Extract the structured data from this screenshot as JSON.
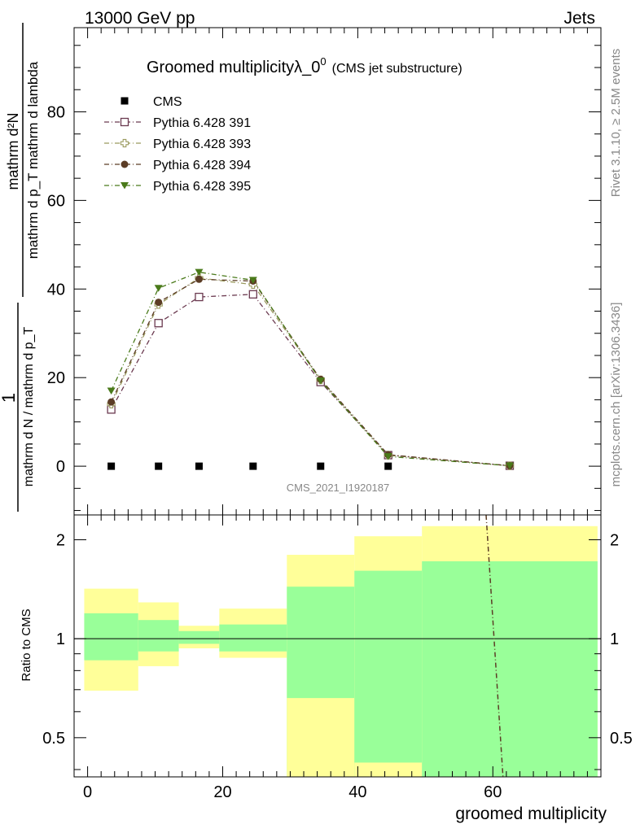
{
  "header": {
    "left": "13000 GeV pp",
    "right": "Jets"
  },
  "side_labels": {
    "rivet": "Rivet 3.1.10, ≥ 2.5M events",
    "mcplots": "mcplots.cern.ch [arXiv:1306.3436]"
  },
  "chart_data": [
    {
      "type": "line",
      "title": "Groomed multiplicityλ_0",
      "title_sup": "0",
      "subtitle": "(CMS jet substructure)",
      "watermark": "CMS_2021_I1920187",
      "ylabel_fraction": {
        "numerator": "1",
        "denominator": "mathrm d N / mathrm d p_T",
        "rhs_numerator": "mathrm d²N",
        "rhs_denominator": "mathrm d p_T mathrm d lambda"
      },
      "x_domain": [
        -2,
        76
      ],
      "ylim": [
        -11,
        99
      ],
      "yticks": [
        0,
        20,
        40,
        60,
        80
      ],
      "grid": false,
      "legend_position": "top-left",
      "series": [
        {
          "name": "CMS",
          "marker": "square-filled",
          "color": "#000000",
          "x": [
            3.5,
            10.5,
            16.5,
            24.5,
            34.5,
            44.5
          ],
          "y": [
            0,
            0,
            0,
            0,
            0,
            0
          ]
        },
        {
          "name": "Pythia 6.428 391",
          "marker": "square-open",
          "color": "#6b3a50",
          "x": [
            3.5,
            10.5,
            16.5,
            24.5,
            34.5,
            44.5,
            62.5
          ],
          "y": [
            12.8,
            32.3,
            38.2,
            38.8,
            19.0,
            2.5,
            0.1
          ]
        },
        {
          "name": "Pythia 6.428 393",
          "marker": "cross-open",
          "color": "#9a9a5e",
          "x": [
            3.5,
            10.5,
            16.5,
            24.5,
            34.5,
            44.5,
            62.5
          ],
          "y": [
            14.0,
            36.5,
            42.5,
            41.0,
            19.5,
            2.5,
            0.1
          ]
        },
        {
          "name": "Pythia 6.428 394",
          "marker": "circle-filled",
          "color": "#5c3d26",
          "x": [
            3.5,
            10.5,
            16.5,
            24.5,
            34.5,
            44.5,
            62.5
          ],
          "y": [
            14.5,
            37.0,
            42.2,
            41.8,
            19.6,
            2.6,
            0.1
          ]
        },
        {
          "name": "Pythia 6.428 395",
          "marker": "triangle-down-filled",
          "color": "#4a7a1a",
          "x": [
            3.5,
            10.5,
            16.5,
            24.5,
            34.5,
            44.5,
            62.5
          ],
          "y": [
            17.0,
            40.2,
            43.8,
            42.0,
            19.3,
            2.2,
            0.1
          ]
        }
      ]
    },
    {
      "type": "line",
      "ylabel": "Ratio to CMS",
      "xlabel": "groomed multiplicity",
      "x_domain": [
        -2,
        76
      ],
      "ylim": [
        0.38,
        2.38
      ],
      "log_y": true,
      "yticks": [
        0.5,
        1,
        2
      ],
      "xticks": [
        0,
        20,
        40,
        60
      ],
      "reference_line": 1,
      "bands": [
        {
          "x0": -0.5,
          "x1": 7.5,
          "yellow": [
            0.695,
            1.42
          ],
          "green": [
            0.86,
            1.195
          ]
        },
        {
          "x0": 7.5,
          "x1": 13.5,
          "yellow": [
            0.825,
            1.29
          ],
          "green": [
            0.915,
            1.14
          ]
        },
        {
          "x0": 13.5,
          "x1": 19.5,
          "yellow": [
            0.935,
            1.095
          ],
          "green": [
            0.965,
            1.055
          ]
        },
        {
          "x0": 19.5,
          "x1": 29.5,
          "yellow": [
            0.875,
            1.235
          ],
          "green": [
            0.915,
            1.105
          ]
        },
        {
          "x0": 29.5,
          "x1": 39.5,
          "yellow": [
            0.38,
            1.8
          ],
          "green": [
            0.38,
            1.44
          ],
          "yellow_lower_edge": 0.66
        },
        {
          "x0": 39.5,
          "x1": 49.5,
          "yellow": [
            0.38,
            2.05
          ],
          "green": [
            0.38,
            1.61
          ],
          "yellow_lower_edge": 0.42
        },
        {
          "x0": 49.5,
          "x1": 75.5,
          "yellow": [
            0.38,
            2.2
          ],
          "green": [
            0.38,
            1.72
          ]
        }
      ],
      "ratio_line": {
        "name": "Pythia 6.428 394",
        "color": "#5c3d26",
        "x": [
          59.0,
          61.5
        ],
        "y": [
          2.38,
          0.38
        ]
      }
    }
  ]
}
